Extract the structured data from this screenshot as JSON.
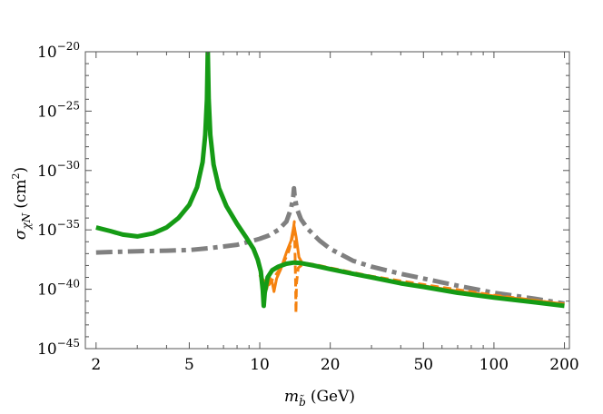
{
  "chart_data": {
    "type": "line",
    "title": "",
    "xlabel": {
      "main": "m",
      "sub": "b̃",
      "unit": "(GeV)"
    },
    "ylabel": {
      "main": "σ",
      "sub": "χN",
      "unit": "(cm",
      "unit_sup": "2",
      "unit_close": ")"
    },
    "x_scale": "log",
    "y_scale": "log",
    "xlim": [
      1.8,
      210
    ],
    "ylim": [
      1e-45,
      1e-20
    ],
    "x_ticks": [
      {
        "value": 2,
        "label": "2"
      },
      {
        "value": 5,
        "label": "5"
      },
      {
        "value": 10,
        "label": "10"
      },
      {
        "value": 20,
        "label": "20"
      },
      {
        "value": 50,
        "label": "50"
      },
      {
        "value": 100,
        "label": "100"
      },
      {
        "value": 200,
        "label": "200"
      }
    ],
    "y_ticks": [
      {
        "exp": -20,
        "base": "10",
        "sup": "−20"
      },
      {
        "exp": -25,
        "base": "10",
        "sup": "−25"
      },
      {
        "exp": -30,
        "base": "10",
        "sup": "−30"
      },
      {
        "exp": -35,
        "base": "10",
        "sup": "−35"
      },
      {
        "exp": -40,
        "base": "10",
        "sup": "−40"
      },
      {
        "exp": -45,
        "base": "10",
        "sup": "−45"
      }
    ],
    "grid": false,
    "series": [
      {
        "color": "#808080",
        "style": "dashdot",
        "width": 5,
        "points": [
          [
            2,
            -36.9
          ],
          [
            3,
            -36.8
          ],
          [
            4,
            -36.75
          ],
          [
            5,
            -36.7
          ],
          [
            6,
            -36.55
          ],
          [
            7,
            -36.4
          ],
          [
            8,
            -36.25
          ],
          [
            9,
            -36.0
          ],
          [
            10,
            -35.75
          ],
          [
            11,
            -35.45
          ],
          [
            12,
            -35.0
          ],
          [
            13,
            -34.3
          ],
          [
            13.6,
            -33.2
          ],
          [
            13.9,
            -32.2
          ],
          [
            14.0,
            -31.5
          ],
          [
            14.1,
            -32.2
          ],
          [
            14.4,
            -33.2
          ],
          [
            15,
            -34.1
          ],
          [
            16,
            -34.9
          ],
          [
            18,
            -35.9
          ],
          [
            20,
            -36.6
          ],
          [
            25,
            -37.6
          ],
          [
            30,
            -38.1
          ],
          [
            40,
            -38.7
          ],
          [
            50,
            -39.1
          ],
          [
            70,
            -39.7
          ],
          [
            100,
            -40.3
          ],
          [
            150,
            -40.8
          ],
          [
            200,
            -41.2
          ]
        ]
      },
      {
        "color": "#f5820f",
        "style": "solid",
        "width": 3,
        "points": [
          [
            10.0,
            -38.8
          ],
          [
            10.4,
            -39.6
          ],
          [
            10.7,
            -40.0
          ],
          [
            11.0,
            -39.0
          ],
          [
            11.3,
            -39.4
          ],
          [
            11.5,
            -40.2
          ],
          [
            11.8,
            -39.1
          ],
          [
            12.3,
            -38.3
          ],
          [
            13.0,
            -36.9
          ],
          [
            13.6,
            -35.9
          ],
          [
            14.0,
            -34.6
          ],
          [
            14.3,
            -35.6
          ],
          [
            14.7,
            -37.3
          ],
          [
            15.2,
            -37.8
          ],
          [
            16,
            -37.9
          ],
          [
            18,
            -38.1
          ],
          [
            20,
            -38.3
          ],
          [
            25,
            -38.7
          ],
          [
            30,
            -39.0
          ],
          [
            40,
            -39.4
          ],
          [
            50,
            -39.7
          ],
          [
            70,
            -40.15
          ],
          [
            100,
            -40.55
          ],
          [
            150,
            -40.95
          ],
          [
            200,
            -41.25
          ]
        ]
      },
      {
        "color": "#f5820f",
        "style": "dashed",
        "width": 3,
        "points": [
          [
            10.2,
            -39.0
          ],
          [
            10.8,
            -39.8
          ],
          [
            11.5,
            -39.0
          ],
          [
            12.5,
            -38.0
          ],
          [
            13.3,
            -36.8
          ],
          [
            13.8,
            -35.6
          ],
          [
            14.05,
            -34.3
          ],
          [
            14.15,
            -37.0
          ],
          [
            14.22,
            -39.5
          ],
          [
            14.28,
            -42.0
          ],
          [
            14.35,
            -39.5
          ],
          [
            14.6,
            -38.2
          ],
          [
            15.5,
            -37.8
          ],
          [
            17,
            -37.9
          ],
          [
            20,
            -38.2
          ],
          [
            30,
            -38.9
          ],
          [
            50,
            -39.6
          ],
          [
            100,
            -40.5
          ],
          [
            200,
            -41.25
          ]
        ]
      },
      {
        "color": "#159b15",
        "style": "solid",
        "width": 5,
        "points": [
          [
            2,
            -34.8
          ],
          [
            2.3,
            -35.1
          ],
          [
            2.6,
            -35.4
          ],
          [
            3.0,
            -35.55
          ],
          [
            3.5,
            -35.3
          ],
          [
            4.0,
            -34.8
          ],
          [
            4.5,
            -34.0
          ],
          [
            5.0,
            -32.9
          ],
          [
            5.4,
            -31.4
          ],
          [
            5.7,
            -29.3
          ],
          [
            5.85,
            -27.0
          ],
          [
            5.95,
            -24.0
          ],
          [
            6.0,
            -20.0
          ],
          [
            6.05,
            -24.0
          ],
          [
            6.15,
            -27.0
          ],
          [
            6.35,
            -29.5
          ],
          [
            6.7,
            -31.5
          ],
          [
            7.2,
            -33.0
          ],
          [
            8.0,
            -34.5
          ],
          [
            8.8,
            -35.7
          ],
          [
            9.4,
            -36.6
          ],
          [
            9.8,
            -37.5
          ],
          [
            10.1,
            -38.5
          ],
          [
            10.3,
            -40.1
          ],
          [
            10.4,
            -41.4
          ],
          [
            10.5,
            -40.3
          ],
          [
            10.8,
            -39.0
          ],
          [
            11.3,
            -38.4
          ],
          [
            12,
            -38.1
          ],
          [
            13,
            -37.85
          ],
          [
            14,
            -37.75
          ],
          [
            15,
            -37.8
          ],
          [
            17,
            -38.0
          ],
          [
            20,
            -38.3
          ],
          [
            25,
            -38.7
          ],
          [
            30,
            -39.0
          ],
          [
            40,
            -39.5
          ],
          [
            50,
            -39.8
          ],
          [
            70,
            -40.3
          ],
          [
            100,
            -40.7
          ],
          [
            150,
            -41.1
          ],
          [
            200,
            -41.4
          ]
        ]
      }
    ]
  }
}
